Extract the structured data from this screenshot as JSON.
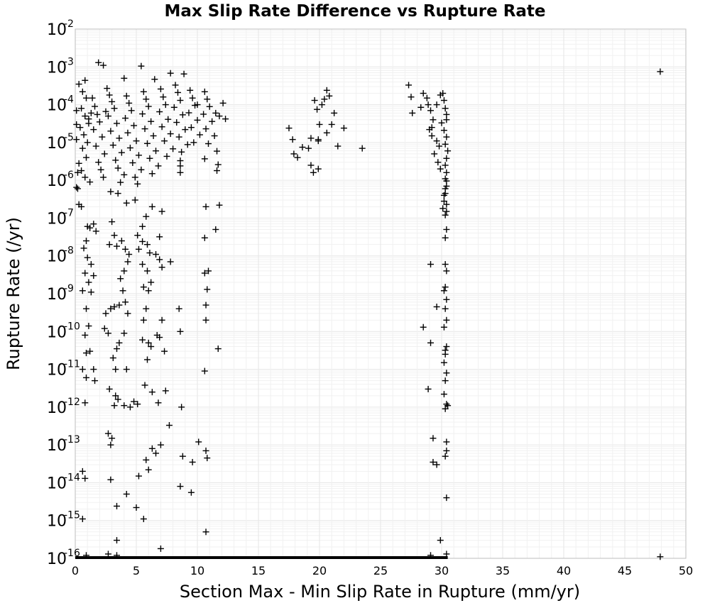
{
  "chart_data": {
    "type": "scatter",
    "title": "Max Slip Rate Difference vs Rupture Rate",
    "xlabel": "Section Max - Min Slip Rate in Rupture (mm/yr)",
    "ylabel": "Rupture Rate (/yr)",
    "xlim": [
      0,
      50
    ],
    "ylim": [
      1e-16,
      0.01
    ],
    "yscale": "log",
    "grid": true,
    "marker": "+",
    "x_ticks": [
      "0",
      "5",
      "10",
      "15",
      "20",
      "25",
      "30",
      "35",
      "40",
      "45",
      "50"
    ],
    "y_ticks": [
      {
        "base": "10",
        "exp": "-2"
      },
      {
        "base": "10",
        "exp": "-3"
      },
      {
        "base": "10",
        "exp": "-4"
      },
      {
        "base": "10",
        "exp": "-5"
      },
      {
        "base": "10",
        "exp": "-6"
      },
      {
        "base": "10",
        "exp": "-7"
      },
      {
        "base": "10",
        "exp": "-8"
      },
      {
        "base": "10",
        "exp": "-9"
      },
      {
        "base": "10",
        "exp": "-10"
      },
      {
        "base": "10",
        "exp": "-11"
      },
      {
        "base": "10",
        "exp": "-12"
      },
      {
        "base": "10",
        "exp": "-13"
      },
      {
        "base": "10",
        "exp": "-14"
      },
      {
        "base": "10",
        "exp": "-15"
      },
      {
        "base": "10",
        "exp": "-16"
      }
    ],
    "points": [
      [
        0.3,
        0.00035
      ],
      [
        0.6,
        0.00022
      ],
      [
        0.9,
        0.00015
      ],
      [
        0.5,
        8e-05
      ],
      [
        0.8,
        5e-05
      ],
      [
        1.1,
        3.2e-05
      ],
      [
        0.4,
        2.5e-05
      ],
      [
        0.7,
        1.6e-05
      ],
      [
        1.0,
        1e-05
      ],
      [
        0.6,
        7e-06
      ],
      [
        0.9,
        4e-06
      ],
      [
        0.3,
        2.8e-06
      ],
      [
        0.5,
        1.8e-06
      ],
      [
        0.8,
        1.2e-06
      ],
      [
        1.2,
        9e-07
      ],
      [
        0.2,
        6e-07
      ],
      [
        1.4,
        0.00015
      ],
      [
        1.6,
        9e-05
      ],
      [
        1.8,
        5.5e-05
      ],
      [
        2.0,
        3.5e-05
      ],
      [
        1.5,
        2.2e-05
      ],
      [
        2.2,
        1.4e-05
      ],
      [
        1.7,
        8e-06
      ],
      [
        2.4,
        5e-06
      ],
      [
        1.9,
        3e-06
      ],
      [
        2.1,
        1.9e-06
      ],
      [
        2.3,
        1.2e-06
      ],
      [
        1.3,
        6e-05
      ],
      [
        1.1,
        4.2e-05
      ],
      [
        2.6,
        0.00027
      ],
      [
        2.8,
        0.00018
      ],
      [
        3.0,
        0.00012
      ],
      [
        3.2,
        8e-05
      ],
      [
        2.7,
        5e-05
      ],
      [
        3.4,
        3.2e-05
      ],
      [
        2.9,
        2e-05
      ],
      [
        3.6,
        1.3e-05
      ],
      [
        3.1,
        8.5e-06
      ],
      [
        3.8,
        5.4e-06
      ],
      [
        3.3,
        3.4e-06
      ],
      [
        3.5,
        2.1e-06
      ],
      [
        4.0,
        1.4e-06
      ],
      [
        3.7,
        8.8e-07
      ],
      [
        2.5,
        6.6e-05
      ],
      [
        4.2,
        0.00017
      ],
      [
        4.4,
        0.00011
      ],
      [
        4.6,
        7e-05
      ],
      [
        4.1,
        4.4e-05
      ],
      [
        4.8,
        2.8e-05
      ],
      [
        4.3,
        1.8e-05
      ],
      [
        5.0,
        1.1e-05
      ],
      [
        4.5,
        7.2e-06
      ],
      [
        5.2,
        4.6e-06
      ],
      [
        4.7,
        2.9e-06
      ],
      [
        5.4,
        1.9e-06
      ],
      [
        4.9,
        1.2e-06
      ],
      [
        5.1,
        8e-07
      ],
      [
        5.6,
        0.00022
      ],
      [
        5.8,
        0.00014
      ],
      [
        6.0,
        9e-05
      ],
      [
        5.5,
        5.7e-05
      ],
      [
        6.2,
        3.6e-05
      ],
      [
        5.7,
        2.3e-05
      ],
      [
        6.4,
        1.5e-05
      ],
      [
        5.9,
        9.4e-06
      ],
      [
        6.6,
        6e-06
      ],
      [
        6.1,
        3.8e-06
      ],
      [
        6.8,
        2.4e-06
      ],
      [
        6.3,
        1.5e-06
      ],
      [
        7.0,
        0.00026
      ],
      [
        7.2,
        0.00016
      ],
      [
        7.4,
        0.0001
      ],
      [
        6.9,
        6.5e-05
      ],
      [
        7.6,
        4.1e-05
      ],
      [
        7.1,
        2.6e-05
      ],
      [
        7.8,
        1.7e-05
      ],
      [
        7.3,
        1.1e-05
      ],
      [
        8.0,
        6.8e-06
      ],
      [
        7.5,
        4.3e-06
      ],
      [
        8.2,
        0.00033
      ],
      [
        8.4,
        0.00021
      ],
      [
        8.6,
        0.00013
      ],
      [
        8.1,
        8.5e-05
      ],
      [
        8.8,
        5.4e-05
      ],
      [
        8.3,
        3.4e-05
      ],
      [
        9.0,
        2.2e-05
      ],
      [
        8.5,
        1.4e-05
      ],
      [
        9.2,
        8.8e-06
      ],
      [
        8.7,
        5.6e-06
      ],
      [
        8.6,
        3.3e-06
      ],
      [
        8.6,
        2.4e-06
      ],
      [
        8.6,
        1.6e-06
      ],
      [
        9.4,
        0.00024
      ],
      [
        9.6,
        0.00015
      ],
      [
        9.8,
        9.6e-05
      ],
      [
        9.3,
        6.1e-05
      ],
      [
        10.0,
        3.9e-05
      ],
      [
        9.5,
        2.5e-05
      ],
      [
        10.2,
        1.6e-05
      ],
      [
        9.7,
        1e-05
      ],
      [
        10.6,
        0.00022
      ],
      [
        10.8,
        0.00014
      ],
      [
        11.0,
        8.9e-05
      ],
      [
        10.5,
        5.6e-05
      ],
      [
        11.2,
        3.6e-05
      ],
      [
        10.7,
        2.3e-05
      ],
      [
        11.4,
        1.5e-05
      ],
      [
        10.9,
        9.3e-06
      ],
      [
        11.6,
        5.9e-06
      ],
      [
        10.6,
        3.7e-06
      ],
      [
        11.8,
        5e-05
      ],
      [
        12.3,
        4.2e-05
      ],
      [
        11.7,
        2.6e-06
      ],
      [
        11.6,
        1.8e-06
      ],
      [
        1.9,
        0.0013
      ],
      [
        2.3,
        0.0011
      ],
      [
        5.4,
        0.00105
      ],
      [
        7.8,
        0.00068
      ],
      [
        8.9,
        0.00065
      ],
      [
        0.8,
        0.00044
      ],
      [
        4.0,
        0.0005
      ],
      [
        6.5,
        0.00047
      ],
      [
        0.1,
        7e-05
      ],
      [
        0.1,
        3e-05
      ],
      [
        0.1,
        1.2e-05
      ],
      [
        0.2,
        1.6e-06
      ],
      [
        0.1,
        6.5e-07
      ],
      [
        10.0,
        0.0001
      ],
      [
        11.5,
        6e-05
      ],
      [
        12.1,
        0.00011
      ],
      [
        17.5,
        2.4e-05
      ],
      [
        17.8,
        1.2e-05
      ],
      [
        17.9,
        5e-06
      ],
      [
        18.2,
        4e-06
      ],
      [
        18.6,
        7.5e-06
      ],
      [
        19.1,
        7e-06
      ],
      [
        19.3,
        2.5e-06
      ],
      [
        19.5,
        1.6e-06
      ],
      [
        19.6,
        0.00013
      ],
      [
        19.8,
        7.5e-05
      ],
      [
        20.0,
        3e-05
      ],
      [
        19.9,
        1.2e-05
      ],
      [
        20.2,
        0.0001
      ],
      [
        20.4,
        0.00014
      ],
      [
        20.6,
        0.00024
      ],
      [
        20.8,
        0.00017
      ],
      [
        21.0,
        3e-05
      ],
      [
        21.2,
        6e-05
      ],
      [
        21.5,
        8e-06
      ],
      [
        22.0,
        2.4e-05
      ],
      [
        20.6,
        1.8e-05
      ],
      [
        19.3,
        1.3e-05
      ],
      [
        23.5,
        7e-06
      ],
      [
        19.9,
        2e-06
      ],
      [
        19.9,
        1.1e-05
      ],
      [
        27.3,
        0.00033
      ],
      [
        27.5,
        0.00016
      ],
      [
        27.6,
        6e-05
      ],
      [
        28.5,
        0.0002
      ],
      [
        28.8,
        0.00015
      ],
      [
        28.9,
        0.0001
      ],
      [
        29.1,
        7e-05
      ],
      [
        29.3,
        4e-05
      ],
      [
        29.0,
        2.2e-05
      ],
      [
        29.2,
        1.5e-05
      ],
      [
        29.6,
        1.1e-05
      ],
      [
        29.8,
        8e-06
      ],
      [
        29.4,
        5e-06
      ],
      [
        29.7,
        3e-06
      ],
      [
        29.9,
        2e-06
      ],
      [
        30.1,
        0.0002
      ],
      [
        30.2,
        0.00013
      ],
      [
        30.3,
        8e-05
      ],
      [
        30.4,
        5.5e-05
      ],
      [
        30.0,
        3.3e-05
      ],
      [
        30.2,
        2.1e-05
      ],
      [
        30.4,
        1.4e-05
      ],
      [
        30.3,
        9e-06
      ],
      [
        30.5,
        6e-06
      ],
      [
        30.4,
        3.8e-06
      ],
      [
        30.3,
        2.5e-06
      ],
      [
        30.4,
        1.6e-06
      ],
      [
        30.3,
        1.1e-06
      ],
      [
        30.4,
        7e-07
      ],
      [
        30.3,
        4.5e-07
      ],
      [
        30.2,
        2.8e-07
      ],
      [
        30.1,
        1.8e-07
      ],
      [
        30.3,
        1.2e-07
      ],
      [
        30.4,
        5e-08
      ],
      [
        30.3,
        3e-08
      ],
      [
        30.4,
        9.6e-07
      ],
      [
        30.3,
        6e-07
      ],
      [
        30.2,
        4e-07
      ],
      [
        30.4,
        2.3e-07
      ],
      [
        30.4,
        1.5e-07
      ],
      [
        29.9,
        0.00018
      ],
      [
        29.6,
        0.0001
      ],
      [
        28.3,
        8.5e-05
      ],
      [
        29.2,
        2.5e-05
      ],
      [
        30.4,
        4e-05
      ],
      [
        0.3,
        2.3e-07
      ],
      [
        0.5,
        2e-07
      ],
      [
        1.0,
        6e-08
      ],
      [
        1.2,
        5.5e-08
      ],
      [
        1.5,
        7e-08
      ],
      [
        1.7,
        4.5e-08
      ],
      [
        0.9,
        2.5e-08
      ],
      [
        0.7,
        1.6e-08
      ],
      [
        1.0,
        9e-09
      ],
      [
        1.3,
        6e-09
      ],
      [
        0.8,
        3.5e-09
      ],
      [
        1.1,
        2e-09
      ],
      [
        0.6,
        1.2e-09
      ],
      [
        1.5,
        3e-09
      ],
      [
        1.3,
        1.1e-09
      ],
      [
        0.9,
        4e-10
      ],
      [
        1.1,
        1.4e-10
      ],
      [
        0.8,
        8e-11
      ],
      [
        1.2,
        3e-11
      ],
      [
        0.9,
        2.7e-11
      ],
      [
        0.6,
        1e-11
      ],
      [
        1.5,
        1e-11
      ],
      [
        0.8,
        1.3e-12
      ],
      [
        1.6,
        5e-12
      ],
      [
        0.9,
        6e-12
      ],
      [
        3.0,
        8e-08
      ],
      [
        3.2,
        3.5e-08
      ],
      [
        2.8,
        2e-08
      ],
      [
        3.4,
        1.8e-08
      ],
      [
        3.8,
        2.5e-08
      ],
      [
        4.1,
        1.5e-08
      ],
      [
        4.4,
        1.1e-08
      ],
      [
        4.3,
        7e-09
      ],
      [
        4.0,
        4e-09
      ],
      [
        3.7,
        2.5e-09
      ],
      [
        3.9,
        1.2e-09
      ],
      [
        4.1,
        6e-10
      ],
      [
        3.6,
        5e-10
      ],
      [
        3.2,
        4.5e-10
      ],
      [
        2.9,
        4e-10
      ],
      [
        4.3,
        3e-10
      ],
      [
        2.5,
        3e-10
      ],
      [
        2.4,
        1.2e-10
      ],
      [
        2.7,
        9e-11
      ],
      [
        4.0,
        9e-11
      ],
      [
        3.6,
        5e-11
      ],
      [
        3.4,
        3.5e-11
      ],
      [
        3.1,
        2e-11
      ],
      [
        3.3,
        1e-11
      ],
      [
        4.2,
        1e-11
      ],
      [
        2.8,
        3e-12
      ],
      [
        3.3,
        2e-12
      ],
      [
        3.5,
        1.6e-12
      ],
      [
        4.0,
        1.1e-12
      ],
      [
        4.5,
        1e-12
      ],
      [
        4.8,
        1.4e-12
      ],
      [
        5.1,
        1.2e-12
      ],
      [
        3.0,
        1.5e-13
      ],
      [
        3.2,
        1.1e-12
      ],
      [
        2.9,
        1e-13
      ],
      [
        2.7,
        2e-13
      ],
      [
        5.5,
        2.4e-08
      ],
      [
        5.9,
        2e-08
      ],
      [
        5.2,
        1.5e-08
      ],
      [
        6.1,
        1.2e-08
      ],
      [
        6.6,
        1.1e-08
      ],
      [
        5.5,
        6e-09
      ],
      [
        5.9,
        4e-09
      ],
      [
        6.2,
        2e-09
      ],
      [
        5.6,
        1.5e-09
      ],
      [
        6.0,
        1.2e-09
      ],
      [
        5.8,
        4e-10
      ],
      [
        5.6,
        2e-10
      ],
      [
        5.5,
        6e-11
      ],
      [
        6.2,
        4e-11
      ],
      [
        5.9,
        1.8e-11
      ],
      [
        6.0,
        5e-11
      ],
      [
        5.7,
        3.8e-12
      ],
      [
        6.3,
        2.5e-12
      ],
      [
        6.8,
        1.3e-12
      ],
      [
        7.0,
        1e-13
      ],
      [
        6.3,
        8e-14
      ],
      [
        6.6,
        6e-14
      ],
      [
        5.8,
        4e-14
      ],
      [
        6.0,
        2.2e-14
      ],
      [
        5.2,
        1.5e-14
      ],
      [
        4.2,
        5e-15
      ],
      [
        3.4,
        2.4e-15
      ],
      [
        5.0,
        2.2e-15
      ],
      [
        5.6,
        1.1e-15
      ],
      [
        6.7,
        8e-11
      ],
      [
        6.9,
        7e-11
      ],
      [
        7.1,
        2e-10
      ],
      [
        7.3,
        3e-11
      ],
      [
        7.4,
        2.7e-12
      ],
      [
        7.7,
        3.3e-13
      ],
      [
        8.5,
        4e-10
      ],
      [
        8.6,
        1e-10
      ],
      [
        8.7,
        1e-12
      ],
      [
        8.8,
        5e-14
      ],
      [
        9.6,
        3.5e-14
      ],
      [
        10.1,
        1.2e-13
      ],
      [
        10.7,
        7e-14
      ],
      [
        10.8,
        4.5e-14
      ],
      [
        10.6,
        9e-12
      ],
      [
        11.7,
        3.5e-11
      ],
      [
        10.7,
        2e-10
      ],
      [
        10.6,
        3.5e-09
      ],
      [
        10.8,
        1.3e-09
      ],
      [
        10.7,
        5e-10
      ],
      [
        10.9,
        4e-09
      ],
      [
        10.7,
        2e-07
      ],
      [
        10.6,
        3e-08
      ],
      [
        11.5,
        5e-08
      ],
      [
        11.8,
        2.2e-07
      ],
      [
        7.8,
        7e-09
      ],
      [
        6.9,
        8e-09
      ],
      [
        7.1,
        5e-09
      ],
      [
        6.9,
        3.2e-08
      ],
      [
        7.1,
        1.5e-07
      ],
      [
        6.3,
        2e-07
      ],
      [
        5.8,
        1.1e-07
      ],
      [
        5.5,
        6e-08
      ],
      [
        5.1,
        3.5e-08
      ],
      [
        2.9,
        5e-07
      ],
      [
        3.5,
        4.5e-07
      ],
      [
        4.2,
        2.5e-07
      ],
      [
        4.9,
        3e-07
      ],
      [
        0.6,
        2e-14
      ],
      [
        0.8,
        1.3e-14
      ],
      [
        2.9,
        1.2e-14
      ],
      [
        0.6,
        1.1e-15
      ],
      [
        3.4,
        3e-16
      ],
      [
        10.7,
        5e-16
      ],
      [
        8.6,
        8e-15
      ],
      [
        9.5,
        5.5e-15
      ],
      [
        7.0,
        1.8e-16
      ],
      [
        0.9,
        1.2e-16
      ],
      [
        2.7,
        1.3e-16
      ],
      [
        3.4,
        1.2e-16
      ],
      [
        30.3,
        6e-09
      ],
      [
        30.4,
        4e-09
      ],
      [
        29.1,
        6e-09
      ],
      [
        30.3,
        1.5e-09
      ],
      [
        30.2,
        1.2e-09
      ],
      [
        30.4,
        7e-10
      ],
      [
        30.3,
        4e-10
      ],
      [
        29.6,
        4.5e-10
      ],
      [
        30.4,
        2e-10
      ],
      [
        30.2,
        1.3e-10
      ],
      [
        28.5,
        1.3e-10
      ],
      [
        29.1,
        5e-11
      ],
      [
        30.4,
        4e-11
      ],
      [
        30.3,
        2.5e-11
      ],
      [
        30.2,
        1.5e-11
      ],
      [
        30.4,
        8e-12
      ],
      [
        30.3,
        5e-12
      ],
      [
        28.9,
        3e-12
      ],
      [
        30.2,
        2.2e-12
      ],
      [
        30.4,
        1.2e-12
      ],
      [
        30.3,
        9e-13
      ],
      [
        29.3,
        1.5e-13
      ],
      [
        30.4,
        7e-14
      ],
      [
        30.3,
        5e-14
      ],
      [
        29.3,
        3.5e-14
      ],
      [
        29.6,
        3e-14
      ],
      [
        30.4,
        1.2e-13
      ],
      [
        30.3,
        3.2e-11
      ],
      [
        30.5,
        1.1e-12
      ],
      [
        30.4,
        4e-15
      ],
      [
        29.9,
        3e-16
      ],
      [
        29.1,
        1.2e-16
      ],
      [
        30.4,
        1.3e-16
      ],
      [
        47.9,
        0.00075
      ],
      [
        47.9,
        1.1e-16
      ]
    ],
    "baseline_band": {
      "x_from": 0,
      "x_to": 30.5,
      "y": 1e-16
    }
  }
}
